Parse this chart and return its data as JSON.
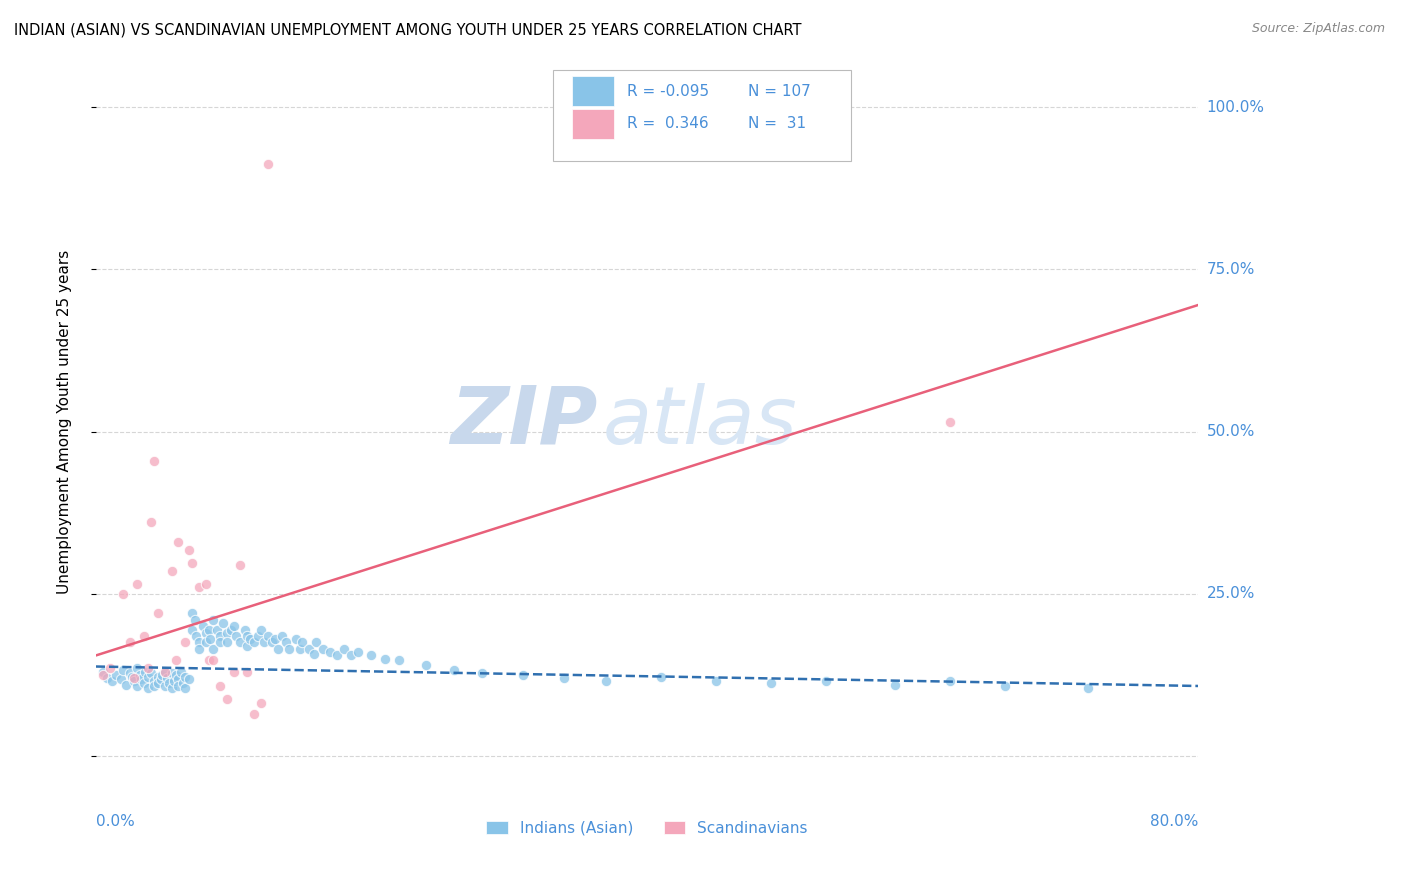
{
  "title": "INDIAN (ASIAN) VS SCANDINAVIAN UNEMPLOYMENT AMONG YOUTH UNDER 25 YEARS CORRELATION CHART",
  "source": "Source: ZipAtlas.com",
  "ylabel": "Unemployment Among Youth under 25 years",
  "yticks": [
    0.0,
    0.25,
    0.5,
    0.75,
    1.0
  ],
  "ytick_labels": [
    "",
    "25.0%",
    "50.0%",
    "75.0%",
    "100.0%"
  ],
  "xlim": [
    0.0,
    0.8
  ],
  "ylim": [
    -0.05,
    1.08
  ],
  "legend_R_indian": "-0.095",
  "legend_N_indian": "107",
  "legend_R_scand": "0.346",
  "legend_N_scand": "31",
  "color_indian": "#89c4e8",
  "color_scand": "#f4a7bb",
  "color_indian_line": "#3070b0",
  "color_scand_line": "#e8607a",
  "color_text_blue": "#4a90d9",
  "watermark_color": "#dce8f5",
  "background_color": "#ffffff",
  "indian_x": [
    0.005,
    0.008,
    0.012,
    0.015,
    0.018,
    0.02,
    0.022,
    0.025,
    0.026,
    0.028,
    0.03,
    0.03,
    0.032,
    0.033,
    0.035,
    0.036,
    0.038,
    0.038,
    0.04,
    0.042,
    0.042,
    0.045,
    0.045,
    0.047,
    0.048,
    0.05,
    0.05,
    0.052,
    0.053,
    0.055,
    0.055,
    0.057,
    0.058,
    0.06,
    0.06,
    0.062,
    0.063,
    0.065,
    0.065,
    0.068,
    0.07,
    0.07,
    0.072,
    0.073,
    0.075,
    0.075,
    0.078,
    0.08,
    0.08,
    0.082,
    0.083,
    0.085,
    0.085,
    0.088,
    0.09,
    0.09,
    0.092,
    0.095,
    0.095,
    0.098,
    0.1,
    0.102,
    0.105,
    0.108,
    0.11,
    0.11,
    0.112,
    0.115,
    0.118,
    0.12,
    0.122,
    0.125,
    0.128,
    0.13,
    0.132,
    0.135,
    0.138,
    0.14,
    0.145,
    0.148,
    0.15,
    0.155,
    0.158,
    0.16,
    0.165,
    0.17,
    0.175,
    0.18,
    0.185,
    0.19,
    0.2,
    0.21,
    0.22,
    0.24,
    0.26,
    0.28,
    0.31,
    0.34,
    0.37,
    0.41,
    0.45,
    0.49,
    0.53,
    0.58,
    0.62,
    0.66,
    0.72
  ],
  "indian_y": [
    0.13,
    0.12,
    0.115,
    0.125,
    0.118,
    0.132,
    0.11,
    0.128,
    0.122,
    0.115,
    0.135,
    0.108,
    0.125,
    0.118,
    0.112,
    0.13,
    0.122,
    0.105,
    0.128,
    0.115,
    0.108,
    0.122,
    0.112,
    0.118,
    0.125,
    0.13,
    0.108,
    0.12,
    0.112,
    0.128,
    0.105,
    0.115,
    0.125,
    0.118,
    0.108,
    0.13,
    0.112,
    0.122,
    0.105,
    0.118,
    0.22,
    0.195,
    0.21,
    0.185,
    0.175,
    0.165,
    0.2,
    0.19,
    0.175,
    0.195,
    0.18,
    0.165,
    0.21,
    0.195,
    0.185,
    0.175,
    0.205,
    0.19,
    0.175,
    0.195,
    0.2,
    0.185,
    0.175,
    0.195,
    0.185,
    0.17,
    0.18,
    0.175,
    0.185,
    0.195,
    0.175,
    0.185,
    0.175,
    0.18,
    0.165,
    0.185,
    0.175,
    0.165,
    0.18,
    0.165,
    0.175,
    0.165,
    0.158,
    0.175,
    0.165,
    0.16,
    0.155,
    0.165,
    0.155,
    0.16,
    0.155,
    0.15,
    0.148,
    0.14,
    0.132,
    0.128,
    0.125,
    0.12,
    0.115,
    0.122,
    0.115,
    0.112,
    0.115,
    0.11,
    0.115,
    0.108,
    0.105
  ],
  "scand_x": [
    0.005,
    0.01,
    0.02,
    0.025,
    0.028,
    0.03,
    0.035,
    0.038,
    0.04,
    0.042,
    0.045,
    0.05,
    0.055,
    0.058,
    0.06,
    0.065,
    0.068,
    0.07,
    0.075,
    0.08,
    0.082,
    0.085,
    0.09,
    0.095,
    0.1,
    0.105,
    0.11,
    0.115,
    0.12,
    0.125,
    0.62
  ],
  "scand_y": [
    0.125,
    0.135,
    0.25,
    0.175,
    0.12,
    0.265,
    0.185,
    0.135,
    0.36,
    0.455,
    0.22,
    0.13,
    0.285,
    0.148,
    0.33,
    0.175,
    0.318,
    0.298,
    0.26,
    0.265,
    0.148,
    0.148,
    0.108,
    0.088,
    0.13,
    0.295,
    0.13,
    0.065,
    0.082,
    0.912,
    0.515
  ],
  "indian_line_x": [
    0.0,
    0.8
  ],
  "indian_line_y": [
    0.138,
    0.108
  ],
  "scand_line_x": [
    0.0,
    0.8
  ],
  "scand_line_y": [
    0.155,
    0.695
  ]
}
